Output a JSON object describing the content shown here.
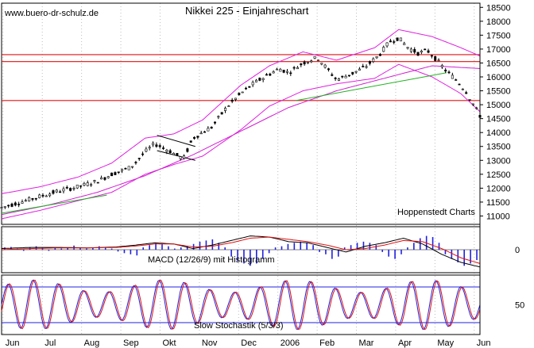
{
  "watermark": "www.buero-dr-schulz.de",
  "chart_data": {
    "type": "candlestick",
    "title": "Nikkei 225 - Einjahreschart",
    "source": "Hoppenstedt Charts",
    "x_tick_labels": [
      "Jun",
      "Jul",
      "Aug",
      "Sep",
      "Okt",
      "Nov",
      "Dec",
      "2006",
      "Feb",
      "Mar",
      "Apr",
      "May",
      "Jun"
    ],
    "price_panel": {
      "y_ticks": [
        11000,
        11500,
        12000,
        12500,
        13000,
        13500,
        14000,
        14500,
        15000,
        15500,
        16000,
        16500,
        17000,
        17500,
        18000,
        18500
      ],
      "ylim": [
        10700,
        18650
      ],
      "horizontal_lines": [
        15150,
        16550,
        16800
      ],
      "close": {
        "x": [
          0,
          0.04,
          0.08,
          0.12,
          0.16,
          0.2,
          0.23,
          0.27,
          0.3,
          0.32,
          0.35,
          0.38,
          0.4,
          0.44,
          0.47,
          0.5,
          0.53,
          0.56,
          0.58,
          0.6,
          0.63,
          0.66,
          0.68,
          0.7,
          0.73,
          0.76,
          0.79,
          0.81,
          0.83,
          0.85,
          0.87,
          0.89,
          0.91,
          0.93,
          0.95,
          0.97,
          1.0
        ],
        "y": [
          11300,
          11500,
          11700,
          11900,
          12050,
          12250,
          12500,
          12750,
          13300,
          13600,
          13350,
          13050,
          13800,
          14200,
          14900,
          15400,
          15800,
          16100,
          16300,
          16150,
          16500,
          16700,
          16300,
          15900,
          16100,
          16350,
          16800,
          17250,
          17400,
          17050,
          16850,
          16950,
          16600,
          16200,
          15900,
          15500,
          14600
        ]
      },
      "bollinger_upper": {
        "x": [
          0,
          0.08,
          0.16,
          0.23,
          0.3,
          0.36,
          0.42,
          0.5,
          0.56,
          0.63,
          0.7,
          0.78,
          0.83,
          0.9,
          0.96,
          1.0
        ],
        "y": [
          11800,
          12050,
          12400,
          12900,
          13800,
          13950,
          14450,
          15700,
          16400,
          16900,
          16600,
          17050,
          17700,
          17450,
          17050,
          16750
        ]
      },
      "bollinger_lower": {
        "x": [
          0,
          0.08,
          0.16,
          0.23,
          0.3,
          0.36,
          0.42,
          0.5,
          0.56,
          0.63,
          0.7,
          0.78,
          0.83,
          0.9,
          0.96,
          1.0
        ],
        "y": [
          10900,
          11200,
          11550,
          11850,
          12500,
          12850,
          13150,
          14100,
          14950,
          15500,
          15750,
          15950,
          16450,
          16000,
          15400,
          14750
        ]
      },
      "moving_average": {
        "x": [
          0,
          0.1,
          0.2,
          0.3,
          0.4,
          0.5,
          0.6,
          0.7,
          0.8,
          0.9,
          1.0
        ],
        "y": [
          11050,
          11400,
          11850,
          12450,
          13200,
          14050,
          14900,
          15500,
          15950,
          16400,
          16300
        ]
      },
      "trend_lines": [
        {
          "x": [
            0.0,
            0.22
          ],
          "y": [
            11100,
            11750
          ]
        },
        {
          "x": [
            0.615,
            0.93
          ],
          "y": [
            15150,
            16150
          ]
        },
        {
          "x": [
            0.325,
            0.405
          ],
          "y": [
            13900,
            13500
          ]
        },
        {
          "x": [
            0.325,
            0.405
          ],
          "y": [
            13350,
            13000
          ]
        }
      ]
    },
    "macd_panel": {
      "label": "MACD (12/26/9) mit Histogramm",
      "y_ticks": [
        0
      ],
      "ylim": [
        -1,
        1
      ],
      "macd": {
        "x": [
          0,
          0.06,
          0.12,
          0.18,
          0.24,
          0.28,
          0.32,
          0.36,
          0.4,
          0.44,
          0.48,
          0.52,
          0.56,
          0.6,
          0.64,
          0.68,
          0.72,
          0.76,
          0.8,
          0.84,
          0.88,
          0.92,
          0.96,
          1.0
        ],
        "y": [
          0.05,
          0.1,
          0.1,
          0.08,
          0.12,
          0.2,
          0.3,
          0.25,
          0.05,
          0.2,
          0.4,
          0.6,
          0.55,
          0.35,
          0.3,
          0.1,
          -0.1,
          0.15,
          0.3,
          0.5,
          0.25,
          -0.2,
          -0.55,
          -0.75
        ]
      },
      "signal": {
        "x": [
          0,
          0.06,
          0.12,
          0.18,
          0.24,
          0.28,
          0.32,
          0.36,
          0.4,
          0.44,
          0.48,
          0.52,
          0.56,
          0.6,
          0.64,
          0.68,
          0.72,
          0.76,
          0.8,
          0.84,
          0.88,
          0.92,
          0.96,
          1.0
        ],
        "y": [
          0.0,
          0.05,
          0.08,
          0.08,
          0.1,
          0.16,
          0.25,
          0.25,
          0.12,
          0.15,
          0.3,
          0.5,
          0.55,
          0.45,
          0.35,
          0.2,
          0.0,
          0.05,
          0.2,
          0.4,
          0.35,
          0.05,
          -0.35,
          -0.6
        ]
      },
      "histogram": [
        0.1,
        0.12,
        0.05,
        -0.05,
        0.1,
        0.15,
        0.08,
        -0.05,
        0.1,
        0.05,
        0.1,
        0.18,
        0.1,
        0.05,
        0.1,
        0.15,
        0.1,
        0.05,
        -0.08,
        -0.15,
        -0.2,
        -0.25,
        0.1,
        0.2,
        0.3,
        0.25,
        0.15,
        0.05,
        0.1,
        0.15,
        0.25,
        0.35,
        0.4,
        0.45,
        0.3,
        0.1,
        -0.3,
        -0.5,
        -0.6,
        -0.7,
        -0.6,
        -0.4,
        -0.15,
        0.1,
        0.15,
        0.25,
        0.3,
        0.35,
        0.3,
        0.2,
        -0.1,
        -0.2,
        -0.4,
        -0.3,
        0.1,
        0.2,
        0.3,
        0.35,
        0.3,
        0.2,
        -0.1,
        -0.3,
        -0.4,
        -0.2,
        0.1,
        0.3,
        0.5,
        0.6,
        0.55,
        0.3,
        -0.2,
        -0.4,
        -0.55,
        -0.7,
        -0.6,
        -0.45
      ]
    },
    "stochastic_panel": {
      "label": "Slow Stochastik (5/3/3)",
      "y_ticks": [
        50
      ],
      "ylim": [
        0,
        100
      ],
      "horizontal_lines": [
        80,
        20
      ]
    }
  }
}
